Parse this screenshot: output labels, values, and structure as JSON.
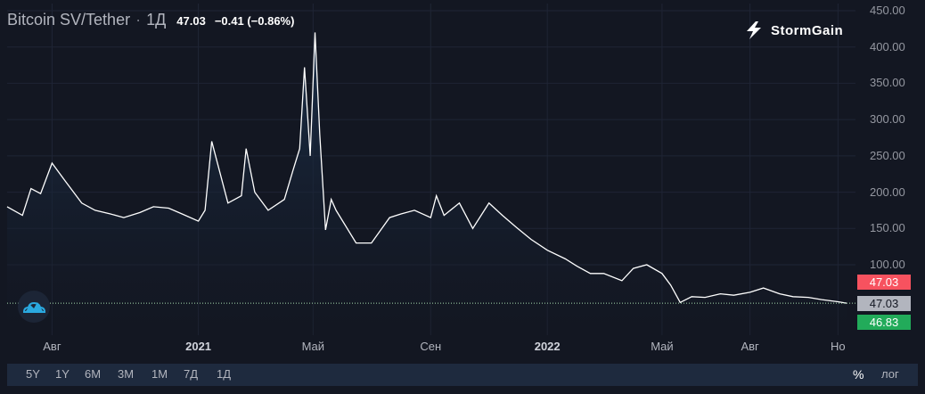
{
  "header": {
    "symbol": "Bitcoin SV/Tether",
    "separator": "·",
    "timeframe": "1Д",
    "last": "47.03",
    "change": "−0.41 (−0.86%)"
  },
  "brand": {
    "name": "StormGain"
  },
  "toolbar": {
    "ranges": [
      "5Y",
      "1Y",
      "6M",
      "3M",
      "1M",
      "7Д",
      "1Д"
    ],
    "percent_label": "%",
    "log_label": "лог"
  },
  "price_tags": {
    "high": "47.03",
    "current": "47.03",
    "low": "46.83"
  },
  "colors": {
    "background": "#131722",
    "line": "#ffffff",
    "area_top": "#1c3350",
    "tag_high": "#f7525f",
    "tag_current": "#b2b5be",
    "tag_low": "#22ab5a",
    "toolbar_bg": "#1e2a3e"
  },
  "chart_data": {
    "type": "area",
    "title": "Bitcoin SV/Tether",
    "ylim": [
      0,
      450
    ],
    "y_ticks": [
      "100.00",
      "150.00",
      "200.00",
      "250.00",
      "300.00",
      "350.00",
      "400.00",
      "450.00"
    ],
    "x_ticks": [
      {
        "label": "Авг",
        "bold": false
      },
      {
        "label": "2021",
        "bold": true
      },
      {
        "label": "Май",
        "bold": false
      },
      {
        "label": "Сен",
        "bold": false
      },
      {
        "label": "2022",
        "bold": true
      },
      {
        "label": "Май",
        "bold": false
      },
      {
        "label": "Авг",
        "bold": false
      },
      {
        "label": "Но",
        "bold": false
      }
    ],
    "grid": true,
    "x": [
      "2020-06-15",
      "2020-07-01",
      "2020-07-10",
      "2020-07-20",
      "2020-08-01",
      "2020-08-15",
      "2020-09-01",
      "2020-09-15",
      "2020-10-01",
      "2020-10-15",
      "2020-11-01",
      "2020-11-15",
      "2020-12-01",
      "2020-12-15",
      "2021-01-01",
      "2021-01-08",
      "2021-01-15",
      "2021-02-01",
      "2021-02-15",
      "2021-02-20",
      "2021-03-01",
      "2021-03-15",
      "2021-04-01",
      "2021-04-10",
      "2021-04-17",
      "2021-04-22",
      "2021-04-28",
      "2021-05-03",
      "2021-05-08",
      "2021-05-14",
      "2021-05-20",
      "2021-05-25",
      "2021-06-01",
      "2021-06-15",
      "2021-07-01",
      "2021-07-20",
      "2021-08-01",
      "2021-08-15",
      "2021-09-01",
      "2021-09-07",
      "2021-09-15",
      "2021-10-01",
      "2021-10-15",
      "2021-11-01",
      "2021-11-15",
      "2021-12-01",
      "2021-12-15",
      "2022-01-01",
      "2022-01-20",
      "2022-02-01",
      "2022-02-15",
      "2022-03-01",
      "2022-03-20",
      "2022-04-01",
      "2022-04-15",
      "2022-05-01",
      "2022-05-10",
      "2022-05-20",
      "2022-06-01",
      "2022-06-15",
      "2022-07-01",
      "2022-07-15",
      "2022-08-01",
      "2022-08-15",
      "2022-09-01",
      "2022-09-15",
      "2022-10-01",
      "2022-10-15",
      "2022-11-01",
      "2022-11-10"
    ],
    "values": [
      180,
      168,
      205,
      198,
      240,
      215,
      185,
      175,
      170,
      165,
      172,
      180,
      178,
      170,
      160,
      175,
      270,
      185,
      195,
      260,
      200,
      175,
      190,
      230,
      260,
      372,
      250,
      420,
      280,
      148,
      190,
      175,
      160,
      130,
      130,
      165,
      170,
      175,
      165,
      195,
      168,
      185,
      150,
      185,
      168,
      150,
      135,
      120,
      108,
      98,
      88,
      88,
      78,
      95,
      100,
      88,
      72,
      48,
      56,
      55,
      60,
      58,
      62,
      68,
      60,
      56,
      55,
      52,
      49,
      47.03
    ]
  }
}
